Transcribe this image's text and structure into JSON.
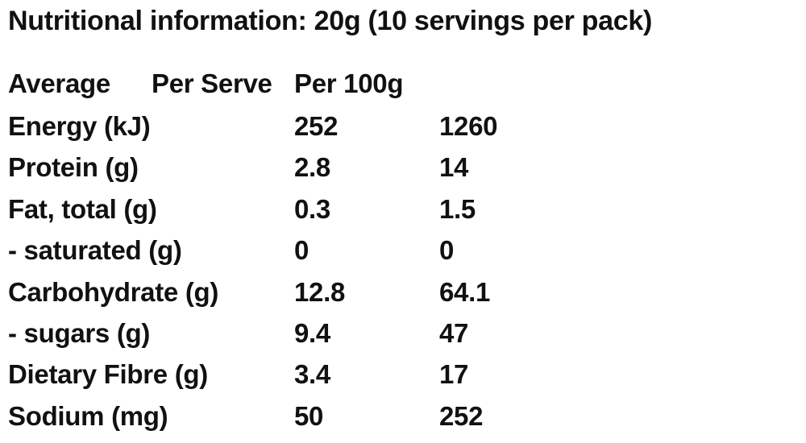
{
  "header": {
    "title": "Nutritional information: 20g (10 servings per pack)"
  },
  "table": {
    "columns": [
      "Average",
      "Per Serve",
      "Per 100g"
    ],
    "rows": [
      [
        "Energy (kJ)",
        "252",
        "1260"
      ],
      [
        "Protein (g)",
        "2.8",
        "14"
      ],
      [
        "Fat, total (g)",
        "0.3",
        "1.5"
      ],
      [
        "- saturated (g)",
        "0",
        "0"
      ],
      [
        "Carbohydrate (g)",
        "12.8",
        "64.1"
      ],
      [
        "- sugars (g)",
        "9.4",
        "47"
      ],
      [
        "Dietary Fibre (g)",
        "3.4",
        "17"
      ],
      [
        "Sodium (mg)",
        "50",
        "252"
      ]
    ]
  }
}
